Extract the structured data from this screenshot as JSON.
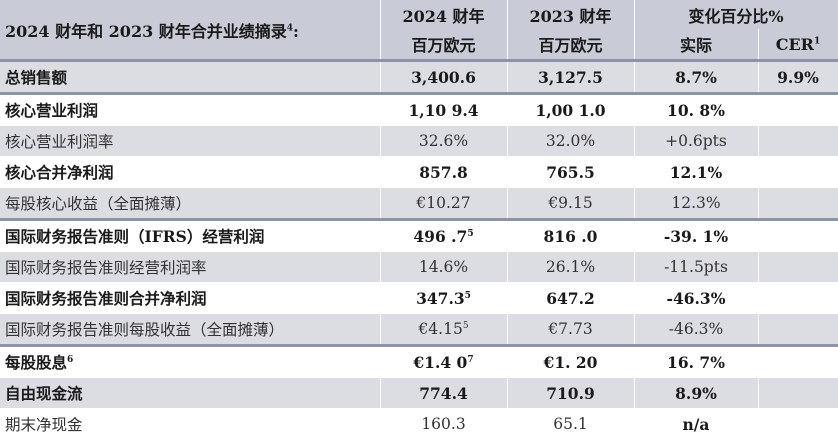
{
  "header": {
    "title": "2024 财年和 2023 财年合并业绩摘录",
    "title_sup": "4",
    "title_suffix": ":",
    "col_2024": "2024 财年",
    "col_2023": "2023 财年",
    "col_change": "变化百分比%",
    "unit_2024": "百万欧元",
    "unit_2023": "百万欧元",
    "sub_actual": "实际",
    "sub_cer": "CER",
    "sub_cer_sup": "1"
  },
  "rows": [
    {
      "label": "总销售额",
      "v2024": "3,400.6",
      "v2024_sup": "",
      "v2023": "3,127.5",
      "actual": "8.7%",
      "cer": "9.9%"
    },
    {
      "label": "核心营业利润",
      "v2024": "1,10 9.4",
      "v2024_sup": "",
      "v2023": "1,00 1.0",
      "actual": "10. 8%",
      "cer": ""
    },
    {
      "label": "核心营业利润率",
      "v2024": "32.6%",
      "v2024_sup": "",
      "v2023": "32.0%",
      "actual": "+0.6pts",
      "cer": ""
    },
    {
      "label": "核心合并净利润",
      "v2024": "857.8",
      "v2024_sup": "",
      "v2023": "765.5",
      "actual": "12.1%",
      "cer": ""
    },
    {
      "label": "每股核心收益（全面摊薄）",
      "v2024": "€10.27",
      "v2024_sup": "",
      "v2023": "€9.15",
      "actual": "12.3%",
      "cer": ""
    },
    {
      "label": "国际财务报告准则（IFRS）经营利润",
      "v2024": "496 .7",
      "v2024_sup": "5",
      "v2023": "816 .0",
      "actual": "-39. 1%",
      "cer": ""
    },
    {
      "label": "国际财务报告准则经营利润率",
      "v2024": "14.6%",
      "v2024_sup": "",
      "v2023": "26.1%",
      "actual": "-11.5pts",
      "cer": ""
    },
    {
      "label": "国际财务报告准则合并净利润",
      "v2024": "347.3",
      "v2024_sup": "5",
      "v2023": "647.2",
      "actual": "-46.3%",
      "cer": ""
    },
    {
      "label": "国际财务报告准则每股收益（全面摊薄）",
      "v2024": "€4.15",
      "v2024_sup": "5",
      "v2023": "€7.73",
      "actual": "-46.3%",
      "cer": ""
    },
    {
      "label": "每股股息",
      "label_sup": "6",
      "v2024": "€1.4 0",
      "v2024_sup": "7",
      "v2023": "€1. 20",
      "actual": "16. 7%",
      "cer": ""
    },
    {
      "label": "自由现金流",
      "v2024": "774.4",
      "v2024_sup": "",
      "v2023": "710.9",
      "actual": "8.9%",
      "cer": ""
    },
    {
      "label": "期末净现金",
      "v2024": "160.3",
      "v2024_sup": "",
      "v2023": "65.1",
      "actual": "n/a",
      "cer": ""
    }
  ]
}
